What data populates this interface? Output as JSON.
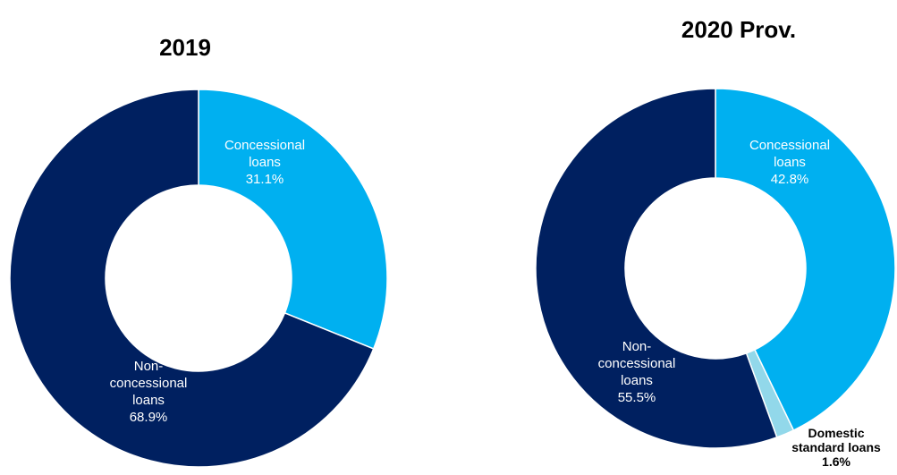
{
  "chart_data": [
    {
      "type": "pie",
      "title": "2019",
      "series": [
        {
          "name": "Concessional loans",
          "value": 31.1,
          "label_lines": [
            "Concessional",
            "loans",
            "31.1%"
          ],
          "color": "#00b0f0"
        },
        {
          "name": "Non-concessional loans",
          "value": 68.9,
          "label_lines": [
            "Non-",
            "concessional",
            "loans",
            "68.9%"
          ],
          "color": "#002060"
        }
      ]
    },
    {
      "type": "pie",
      "title": "2020 Prov.",
      "series": [
        {
          "name": "Concessional loans",
          "value": 42.8,
          "label_lines": [
            "Concessional",
            "loans",
            "42.8%"
          ],
          "color": "#00b0f0"
        },
        {
          "name": "Domestic standard loans",
          "value": 1.6,
          "label_lines": [
            "Domestic",
            "standard loans",
            "1.6%"
          ],
          "color": "#92d8ea"
        },
        {
          "name": "Non-concessional loans",
          "value": 55.5,
          "label_lines": [
            "Non-",
            "concessional",
            "loans",
            "55.5%"
          ],
          "color": "#002060"
        }
      ]
    }
  ]
}
